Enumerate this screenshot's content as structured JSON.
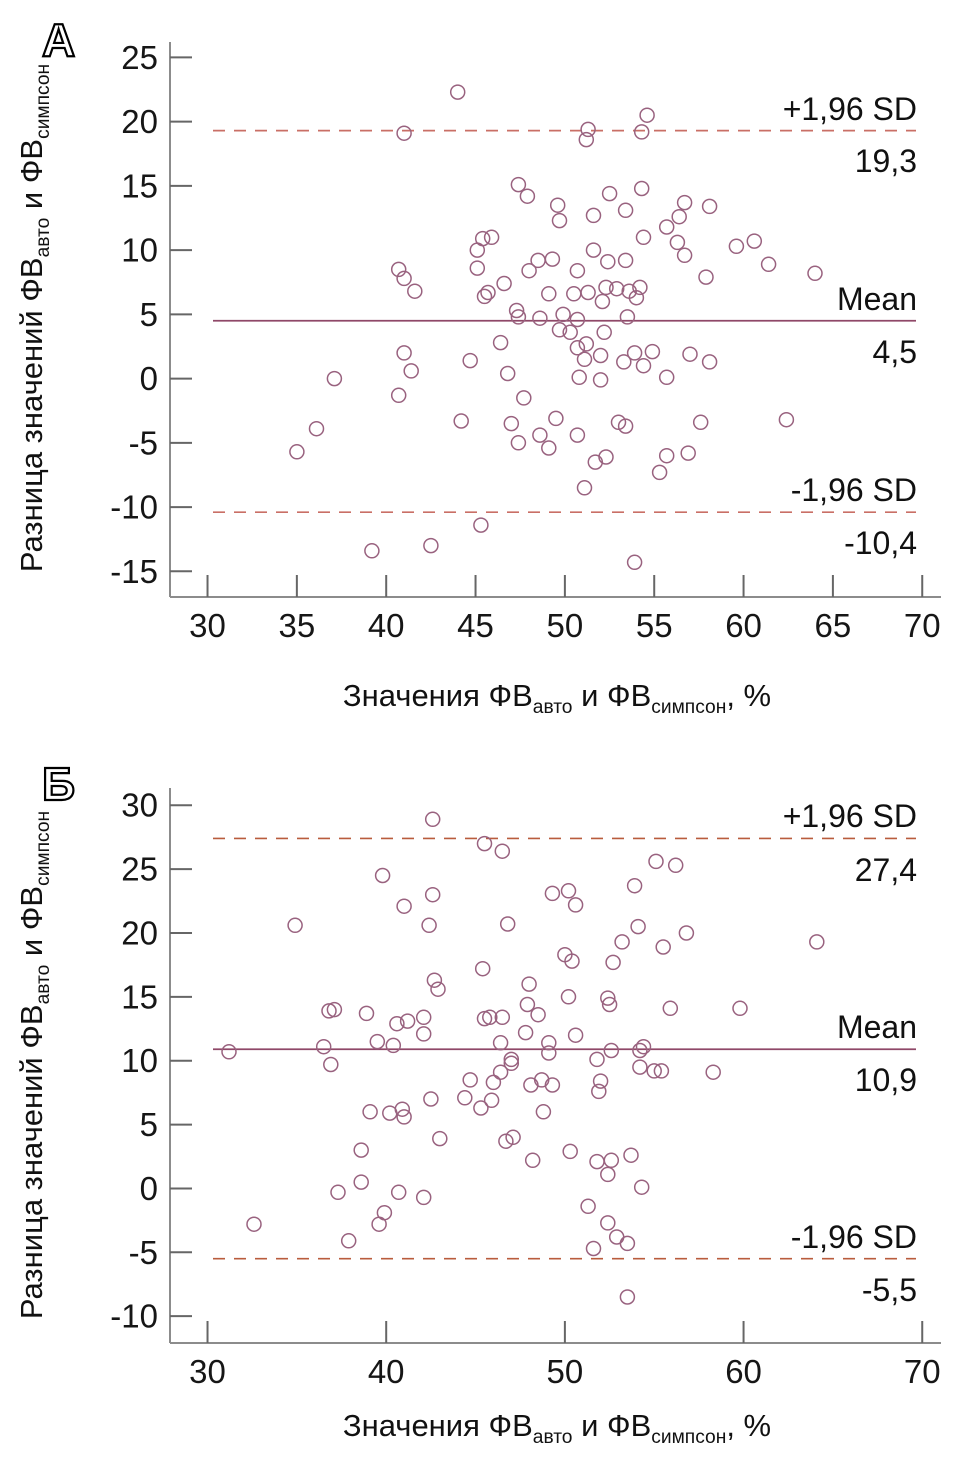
{
  "styles": {
    "background": "#ffffff",
    "point_stroke": "#99627f",
    "mean_line_color": "#8f4868",
    "axis_color": "#8c8c8c",
    "tick_color": "#666666",
    "text_color": "#111111"
  },
  "chart_data": [
    {
      "type": "scatter",
      "panel_label": "А",
      "x_axis": {
        "ticks": [
          30,
          35,
          40,
          45,
          50,
          55,
          60,
          65,
          70
        ],
        "range": [
          27.9,
          71.05
        ],
        "title_segments": [
          {
            "text": "Значения ФВ"
          },
          {
            "text": "авто",
            "sub": true
          },
          {
            "text": " и ФВ"
          },
          {
            "text": "симпсон",
            "sub": true
          },
          {
            "text": ", %"
          }
        ]
      },
      "y_axis": {
        "ticks": [
          25,
          20,
          15,
          10,
          5,
          0,
          -5,
          -10,
          -15
        ],
        "range": [
          -17.0,
          26.2
        ],
        "title_segments": [
          {
            "text": "Разница значений ФВ"
          },
          {
            "text": "авто",
            "sub": true
          },
          {
            "text": " и ФВ"
          },
          {
            "text": "симпсон",
            "sub": true
          }
        ]
      },
      "mean_line": {
        "label": "Mean",
        "value_label": "4,5",
        "value": 4.5
      },
      "upper_limit": {
        "label": "+1,96 SD",
        "value_label": "19,3",
        "value": 19.3,
        "color": "#c96f66"
      },
      "lower_limit": {
        "label": "-1,96 SD",
        "value_label": "-10,4",
        "value": -10.4,
        "color": "#c96f66"
      },
      "points": [
        [
          35.0,
          -5.7
        ],
        [
          36.1,
          -3.9
        ],
        [
          37.1,
          0.0
        ],
        [
          39.2,
          -13.4
        ],
        [
          40.7,
          8.5
        ],
        [
          40.7,
          -1.3
        ],
        [
          41.0,
          19.1
        ],
        [
          41.0,
          7.8
        ],
        [
          41.0,
          2.0
        ],
        [
          41.4,
          0.6
        ],
        [
          41.6,
          6.8
        ],
        [
          42.5,
          -13.0
        ],
        [
          44.0,
          22.3
        ],
        [
          44.2,
          -3.3
        ],
        [
          44.7,
          1.4
        ],
        [
          45.1,
          10.0
        ],
        [
          45.1,
          8.6
        ],
        [
          45.3,
          -11.4
        ],
        [
          45.4,
          10.9
        ],
        [
          45.5,
          6.4
        ],
        [
          45.7,
          6.7
        ],
        [
          45.9,
          11.0
        ],
        [
          46.4,
          2.8
        ],
        [
          46.6,
          7.4
        ],
        [
          46.8,
          0.4
        ],
        [
          47.0,
          -3.5
        ],
        [
          47.3,
          5.3
        ],
        [
          47.4,
          15.1
        ],
        [
          47.4,
          4.8
        ],
        [
          47.4,
          -5.0
        ],
        [
          47.7,
          -1.5
        ],
        [
          47.9,
          14.2
        ],
        [
          48.0,
          8.4
        ],
        [
          48.5,
          9.2
        ],
        [
          48.6,
          4.7
        ],
        [
          48.6,
          -4.4
        ],
        [
          49.1,
          6.6
        ],
        [
          49.1,
          -5.4
        ],
        [
          49.3,
          9.3
        ],
        [
          49.5,
          -3.1
        ],
        [
          49.6,
          13.5
        ],
        [
          49.7,
          12.3
        ],
        [
          49.7,
          3.8
        ],
        [
          49.9,
          5.0
        ],
        [
          50.3,
          3.6
        ],
        [
          50.5,
          6.6
        ],
        [
          50.7,
          8.4
        ],
        [
          50.7,
          4.6
        ],
        [
          50.7,
          2.4
        ],
        [
          50.7,
          -4.4
        ],
        [
          50.8,
          0.1
        ],
        [
          51.1,
          1.5
        ],
        [
          51.1,
          -8.5
        ],
        [
          51.2,
          18.6
        ],
        [
          51.2,
          2.7
        ],
        [
          51.3,
          19.4
        ],
        [
          51.3,
          6.7
        ],
        [
          51.6,
          12.7
        ],
        [
          51.6,
          10.0
        ],
        [
          51.7,
          -6.5
        ],
        [
          52.0,
          1.8
        ],
        [
          52.0,
          -0.1
        ],
        [
          52.1,
          6.0
        ],
        [
          52.2,
          3.6
        ],
        [
          52.3,
          7.1
        ],
        [
          52.3,
          -6.1
        ],
        [
          52.4,
          9.1
        ],
        [
          52.5,
          14.4
        ],
        [
          52.9,
          7.0
        ],
        [
          53.0,
          -3.4
        ],
        [
          53.3,
          1.3
        ],
        [
          53.4,
          13.1
        ],
        [
          53.4,
          9.2
        ],
        [
          53.4,
          -3.7
        ],
        [
          53.5,
          4.8
        ],
        [
          53.6,
          6.8
        ],
        [
          53.9,
          2.0
        ],
        [
          53.9,
          -14.3
        ],
        [
          54.0,
          6.3
        ],
        [
          54.2,
          7.1
        ],
        [
          54.3,
          19.2
        ],
        [
          54.3,
          14.8
        ],
        [
          54.4,
          11.0
        ],
        [
          54.4,
          1.0
        ],
        [
          54.6,
          20.5
        ],
        [
          54.9,
          2.1
        ],
        [
          55.3,
          -7.3
        ],
        [
          55.7,
          11.8
        ],
        [
          55.7,
          0.1
        ],
        [
          55.7,
          -6.0
        ],
        [
          56.3,
          10.6
        ],
        [
          56.4,
          12.6
        ],
        [
          56.7,
          13.7
        ],
        [
          56.7,
          9.6
        ],
        [
          56.9,
          -5.8
        ],
        [
          57.0,
          1.9
        ],
        [
          57.6,
          -3.4
        ],
        [
          57.9,
          7.9
        ],
        [
          58.1,
          13.4
        ],
        [
          58.1,
          1.3
        ],
        [
          59.6,
          10.3
        ],
        [
          60.6,
          10.7
        ],
        [
          61.4,
          8.9
        ],
        [
          62.4,
          -3.2
        ],
        [
          64.0,
          8.2
        ]
      ]
    },
    {
      "type": "scatter",
      "panel_label": "Б",
      "x_axis": {
        "ticks": [
          30,
          40,
          50,
          60,
          70
        ],
        "range": [
          27.9,
          71.05
        ],
        "title_segments": [
          {
            "text": "Значения ФВ"
          },
          {
            "text": "авто",
            "sub": true
          },
          {
            "text": " и ФВ"
          },
          {
            "text": "симпсон",
            "sub": true
          },
          {
            "text": ", %"
          }
        ]
      },
      "y_axis": {
        "ticks": [
          30,
          25,
          20,
          15,
          10,
          5,
          0,
          -5,
          -10
        ],
        "range": [
          -12.1,
          31.35
        ],
        "title_segments": [
          {
            "text": "Разница значений ФВ"
          },
          {
            "text": "авто",
            "sub": true
          },
          {
            "text": " и ФВ"
          },
          {
            "text": "симпсон",
            "sub": true
          }
        ]
      },
      "mean_line": {
        "label": "Mean",
        "value_label": "10,9",
        "value": 10.9
      },
      "upper_limit": {
        "label": "+1,96 SD",
        "value_label": "27,4",
        "value": 27.4,
        "color": "#b95c3d"
      },
      "lower_limit": {
        "label": "-1,96 SD",
        "value_label": "-5,5",
        "value": -5.5,
        "color": "#b95c3d"
      },
      "points": [
        [
          31.2,
          10.7
        ],
        [
          32.6,
          -2.8
        ],
        [
          34.9,
          20.6
        ],
        [
          36.5,
          11.1
        ],
        [
          36.8,
          13.9
        ],
        [
          36.9,
          9.7
        ],
        [
          37.1,
          14.0
        ],
        [
          37.3,
          -0.3
        ],
        [
          37.9,
          -4.1
        ],
        [
          38.6,
          3.0
        ],
        [
          38.6,
          0.5
        ],
        [
          38.9,
          13.7
        ],
        [
          39.1,
          6.0
        ],
        [
          39.5,
          11.5
        ],
        [
          39.6,
          -2.8
        ],
        [
          39.8,
          24.5
        ],
        [
          39.9,
          -1.9
        ],
        [
          40.2,
          5.9
        ],
        [
          40.4,
          11.2
        ],
        [
          40.6,
          12.9
        ],
        [
          40.7,
          -0.3
        ],
        [
          40.9,
          6.2
        ],
        [
          41.0,
          5.6
        ],
        [
          41.0,
          22.1
        ],
        [
          41.2,
          13.1
        ],
        [
          42.1,
          13.4
        ],
        [
          42.1,
          12.1
        ],
        [
          42.1,
          -0.7
        ],
        [
          42.4,
          20.6
        ],
        [
          42.5,
          7.0
        ],
        [
          42.6,
          28.9
        ],
        [
          42.6,
          23.0
        ],
        [
          42.7,
          16.3
        ],
        [
          42.9,
          15.6
        ],
        [
          43.0,
          3.9
        ],
        [
          44.4,
          7.1
        ],
        [
          44.7,
          8.5
        ],
        [
          45.3,
          6.3
        ],
        [
          45.4,
          17.2
        ],
        [
          45.5,
          27.0
        ],
        [
          45.5,
          13.3
        ],
        [
          45.8,
          13.4
        ],
        [
          45.9,
          6.9
        ],
        [
          46.0,
          8.3
        ],
        [
          46.4,
          9.1
        ],
        [
          46.4,
          11.4
        ],
        [
          46.5,
          26.4
        ],
        [
          46.5,
          13.4
        ],
        [
          46.7,
          3.7
        ],
        [
          46.8,
          20.7
        ],
        [
          47.0,
          9.8
        ],
        [
          47.0,
          10.1
        ],
        [
          47.1,
          4.0
        ],
        [
          47.8,
          12.2
        ],
        [
          47.9,
          14.4
        ],
        [
          48.0,
          16.0
        ],
        [
          48.1,
          8.1
        ],
        [
          48.2,
          2.2
        ],
        [
          48.5,
          13.6
        ],
        [
          48.7,
          8.5
        ],
        [
          48.8,
          6.0
        ],
        [
          49.1,
          11.4
        ],
        [
          49.1,
          10.6
        ],
        [
          49.3,
          8.1
        ],
        [
          49.3,
          23.1
        ],
        [
          50.0,
          18.3
        ],
        [
          50.2,
          23.3
        ],
        [
          50.2,
          15.0
        ],
        [
          50.3,
          2.9
        ],
        [
          50.4,
          17.8
        ],
        [
          50.6,
          22.2
        ],
        [
          50.6,
          12.0
        ],
        [
          51.3,
          -1.4
        ],
        [
          51.6,
          -4.7
        ],
        [
          51.8,
          10.1
        ],
        [
          51.8,
          2.1
        ],
        [
          51.9,
          7.6
        ],
        [
          52.0,
          8.4
        ],
        [
          52.4,
          14.9
        ],
        [
          52.4,
          1.1
        ],
        [
          52.4,
          -2.7
        ],
        [
          52.5,
          14.4
        ],
        [
          52.6,
          2.2
        ],
        [
          52.6,
          10.8
        ],
        [
          52.7,
          17.7
        ],
        [
          52.9,
          -3.8
        ],
        [
          53.2,
          19.3
        ],
        [
          53.5,
          -4.3
        ],
        [
          53.5,
          -8.5
        ],
        [
          53.7,
          2.6
        ],
        [
          53.9,
          23.7
        ],
        [
          54.1,
          20.5
        ],
        [
          54.2,
          9.5
        ],
        [
          54.2,
          10.8
        ],
        [
          54.3,
          0.1
        ],
        [
          54.4,
          11.1
        ],
        [
          55.0,
          9.2
        ],
        [
          55.1,
          25.6
        ],
        [
          55.4,
          9.2
        ],
        [
          55.5,
          18.9
        ],
        [
          55.9,
          14.1
        ],
        [
          56.2,
          25.3
        ],
        [
          56.8,
          20.0
        ],
        [
          58.3,
          9.1
        ],
        [
          59.8,
          14.1
        ],
        [
          64.1,
          19.3
        ]
      ]
    }
  ]
}
